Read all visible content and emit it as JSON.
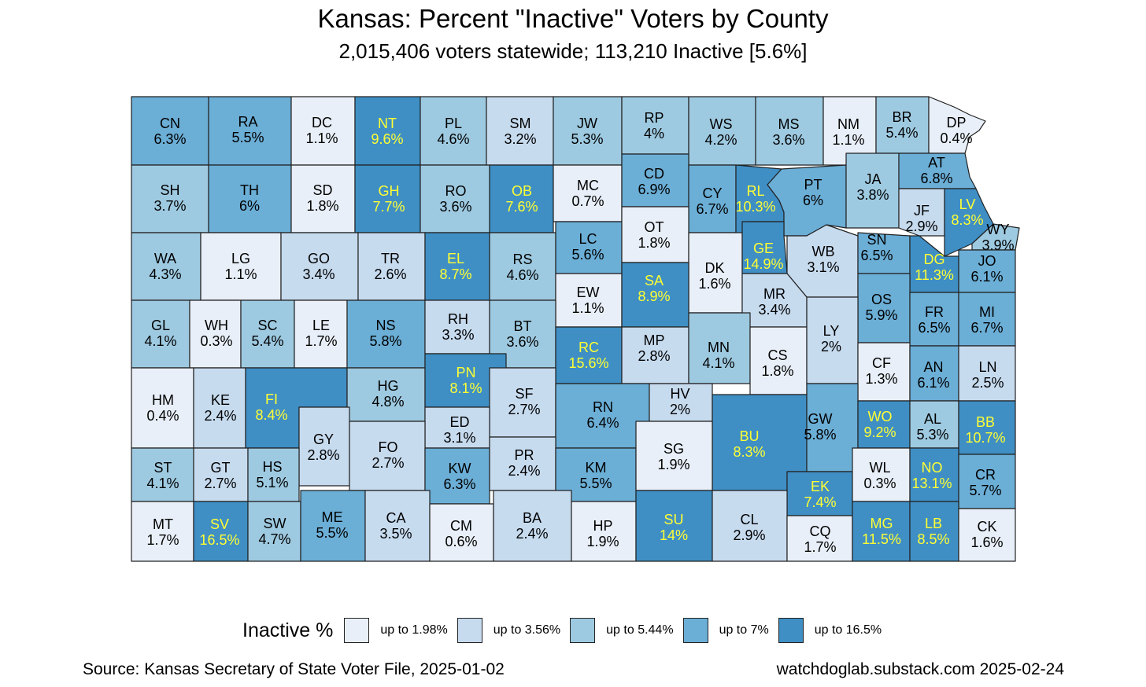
{
  "title": "Kansas:  Percent \"Inactive\" Voters by County",
  "subtitle": "2,015,406 voters statewide; 113,210 Inactive [5.6%]",
  "colors": {
    "bins": [
      "#e8eff8",
      "#c7dbef",
      "#9ecae1",
      "#6baed6",
      "#3f8fc5"
    ],
    "label_dark": "#000000",
    "label_light": "#ffff33",
    "border": "#222222"
  },
  "legend": {
    "title": "Inactive %",
    "items": [
      {
        "label": "up to 1.98%",
        "color": "#e8eff8"
      },
      {
        "label": "up to 3.56%",
        "color": "#c7dbef"
      },
      {
        "label": "up to 5.44%",
        "color": "#9ecae1"
      },
      {
        "label": "up to 7%",
        "color": "#6baed6"
      },
      {
        "label": "up to 16.5%",
        "color": "#3f8fc5"
      }
    ]
  },
  "counties": [
    {
      "abbr": "CN",
      "pct": "6.3%",
      "bin": 3
    },
    {
      "abbr": "RA",
      "pct": "5.5%",
      "bin": 3
    },
    {
      "abbr": "DC",
      "pct": "1.1%",
      "bin": 0
    },
    {
      "abbr": "NT",
      "pct": "9.6%",
      "bin": 4
    },
    {
      "abbr": "PL",
      "pct": "4.6%",
      "bin": 2
    },
    {
      "abbr": "SM",
      "pct": "3.2%",
      "bin": 1
    },
    {
      "abbr": "JW",
      "pct": "5.3%",
      "bin": 2
    },
    {
      "abbr": "RP",
      "pct": "4%",
      "bin": 2
    },
    {
      "abbr": "WS",
      "pct": "4.2%",
      "bin": 2
    },
    {
      "abbr": "MS",
      "pct": "3.6%",
      "bin": 2
    },
    {
      "abbr": "NM",
      "pct": "1.1%",
      "bin": 0
    },
    {
      "abbr": "BR",
      "pct": "5.4%",
      "bin": 2
    },
    {
      "abbr": "DP",
      "pct": "0.4%",
      "bin": 0
    },
    {
      "abbr": "SH",
      "pct": "3.7%",
      "bin": 2
    },
    {
      "abbr": "TH",
      "pct": "6%",
      "bin": 3
    },
    {
      "abbr": "SD",
      "pct": "1.8%",
      "bin": 0
    },
    {
      "abbr": "GH",
      "pct": "7.7%",
      "bin": 4
    },
    {
      "abbr": "RO",
      "pct": "3.6%",
      "bin": 2
    },
    {
      "abbr": "OB",
      "pct": "7.6%",
      "bin": 4
    },
    {
      "abbr": "MC",
      "pct": "0.7%",
      "bin": 0
    },
    {
      "abbr": "CD",
      "pct": "6.9%",
      "bin": 3
    },
    {
      "abbr": "CY",
      "pct": "6.7%",
      "bin": 3
    },
    {
      "abbr": "RL",
      "pct": "10.3%",
      "bin": 4
    },
    {
      "abbr": "PT",
      "pct": "6%",
      "bin": 3
    },
    {
      "abbr": "JA",
      "pct": "3.8%",
      "bin": 2
    },
    {
      "abbr": "AT",
      "pct": "6.8%",
      "bin": 3
    },
    {
      "abbr": "JF",
      "pct": "2.9%",
      "bin": 1
    },
    {
      "abbr": "LV",
      "pct": "8.3%",
      "bin": 4
    },
    {
      "abbr": "WY",
      "pct": "3.9%",
      "bin": 2
    },
    {
      "abbr": "WA",
      "pct": "4.3%",
      "bin": 2
    },
    {
      "abbr": "LG",
      "pct": "1.1%",
      "bin": 0
    },
    {
      "abbr": "GO",
      "pct": "3.4%",
      "bin": 1
    },
    {
      "abbr": "TR",
      "pct": "2.6%",
      "bin": 1
    },
    {
      "abbr": "EL",
      "pct": "8.7%",
      "bin": 4
    },
    {
      "abbr": "RS",
      "pct": "4.6%",
      "bin": 2
    },
    {
      "abbr": "LC",
      "pct": "5.6%",
      "bin": 3
    },
    {
      "abbr": "OT",
      "pct": "1.8%",
      "bin": 0
    },
    {
      "abbr": "DK",
      "pct": "1.6%",
      "bin": 0
    },
    {
      "abbr": "GE",
      "pct": "14.9%",
      "bin": 4
    },
    {
      "abbr": "WB",
      "pct": "3.1%",
      "bin": 1
    },
    {
      "abbr": "SN",
      "pct": "6.5%",
      "bin": 3
    },
    {
      "abbr": "DG",
      "pct": "11.3%",
      "bin": 4
    },
    {
      "abbr": "JO",
      "pct": "6.1%",
      "bin": 3
    },
    {
      "abbr": "EW",
      "pct": "1.1%",
      "bin": 0
    },
    {
      "abbr": "SA",
      "pct": "8.9%",
      "bin": 4
    },
    {
      "abbr": "MR",
      "pct": "3.4%",
      "bin": 1
    },
    {
      "abbr": "OS",
      "pct": "5.9%",
      "bin": 3
    },
    {
      "abbr": "FR",
      "pct": "6.5%",
      "bin": 3
    },
    {
      "abbr": "MI",
      "pct": "6.7%",
      "bin": 3
    },
    {
      "abbr": "GL",
      "pct": "4.1%",
      "bin": 2
    },
    {
      "abbr": "WH",
      "pct": "0.3%",
      "bin": 0
    },
    {
      "abbr": "SC",
      "pct": "5.4%",
      "bin": 2
    },
    {
      "abbr": "LE",
      "pct": "1.7%",
      "bin": 0
    },
    {
      "abbr": "NS",
      "pct": "5.8%",
      "bin": 3
    },
    {
      "abbr": "RH",
      "pct": "3.3%",
      "bin": 1
    },
    {
      "abbr": "BT",
      "pct": "3.6%",
      "bin": 2
    },
    {
      "abbr": "RC",
      "pct": "15.6%",
      "bin": 4
    },
    {
      "abbr": "MP",
      "pct": "2.8%",
      "bin": 1
    },
    {
      "abbr": "MN",
      "pct": "4.1%",
      "bin": 2
    },
    {
      "abbr": "CS",
      "pct": "1.8%",
      "bin": 0
    },
    {
      "abbr": "LY",
      "pct": "2%",
      "bin": 1
    },
    {
      "abbr": "CF",
      "pct": "1.3%",
      "bin": 0
    },
    {
      "abbr": "AN",
      "pct": "6.1%",
      "bin": 3
    },
    {
      "abbr": "LN",
      "pct": "2.5%",
      "bin": 1
    },
    {
      "abbr": "HM",
      "pct": "0.4%",
      "bin": 0
    },
    {
      "abbr": "KE",
      "pct": "2.4%",
      "bin": 1
    },
    {
      "abbr": "FI",
      "pct": "8.4%",
      "bin": 4
    },
    {
      "abbr": "HG",
      "pct": "4.8%",
      "bin": 2
    },
    {
      "abbr": "PN",
      "pct": "8.1%",
      "bin": 4
    },
    {
      "abbr": "SF",
      "pct": "2.7%",
      "bin": 1
    },
    {
      "abbr": "ED",
      "pct": "3.1%",
      "bin": 1
    },
    {
      "abbr": "RN",
      "pct": "6.4%",
      "bin": 3
    },
    {
      "abbr": "HV",
      "pct": "2%",
      "bin": 1
    },
    {
      "abbr": "BU",
      "pct": "8.3%",
      "bin": 4
    },
    {
      "abbr": "GW",
      "pct": "5.8%",
      "bin": 3
    },
    {
      "abbr": "WO",
      "pct": "9.2%",
      "bin": 4
    },
    {
      "abbr": "AL",
      "pct": "5.3%",
      "bin": 2
    },
    {
      "abbr": "BB",
      "pct": "10.7%",
      "bin": 4
    },
    {
      "abbr": "GY",
      "pct": "2.8%",
      "bin": 1
    },
    {
      "abbr": "FO",
      "pct": "2.7%",
      "bin": 1
    },
    {
      "abbr": "ST",
      "pct": "4.1%",
      "bin": 2
    },
    {
      "abbr": "GT",
      "pct": "2.7%",
      "bin": 1
    },
    {
      "abbr": "HS",
      "pct": "5.1%",
      "bin": 2
    },
    {
      "abbr": "KW",
      "pct": "6.3%",
      "bin": 3
    },
    {
      "abbr": "PR",
      "pct": "2.4%",
      "bin": 1
    },
    {
      "abbr": "KM",
      "pct": "5.5%",
      "bin": 3
    },
    {
      "abbr": "SG",
      "pct": "1.9%",
      "bin": 0
    },
    {
      "abbr": "EK",
      "pct": "7.4%",
      "bin": 4
    },
    {
      "abbr": "WL",
      "pct": "0.3%",
      "bin": 0
    },
    {
      "abbr": "NO",
      "pct": "13.1%",
      "bin": 4
    },
    {
      "abbr": "CR",
      "pct": "5.7%",
      "bin": 3
    },
    {
      "abbr": "MT",
      "pct": "1.7%",
      "bin": 0
    },
    {
      "abbr": "SV",
      "pct": "16.5%",
      "bin": 4
    },
    {
      "abbr": "SW",
      "pct": "4.7%",
      "bin": 2
    },
    {
      "abbr": "ME",
      "pct": "5.5%",
      "bin": 3
    },
    {
      "abbr": "CA",
      "pct": "3.5%",
      "bin": 1
    },
    {
      "abbr": "CM",
      "pct": "0.6%",
      "bin": 0
    },
    {
      "abbr": "BA",
      "pct": "2.4%",
      "bin": 1
    },
    {
      "abbr": "HP",
      "pct": "1.9%",
      "bin": 0
    },
    {
      "abbr": "SU",
      "pct": "14%",
      "bin": 4
    },
    {
      "abbr": "CL",
      "pct": "2.9%",
      "bin": 1
    },
    {
      "abbr": "CQ",
      "pct": "1.7%",
      "bin": 0
    },
    {
      "abbr": "MG",
      "pct": "11.5%",
      "bin": 4
    },
    {
      "abbr": "LB",
      "pct": "8.5%",
      "bin": 4
    },
    {
      "abbr": "CK",
      "pct": "1.6%",
      "bin": 0
    }
  ],
  "source": "Source:  Kansas Secretary of State Voter File, 2025-01-02",
  "credit": "watchdoglab.substack.com 2025-02-24"
}
